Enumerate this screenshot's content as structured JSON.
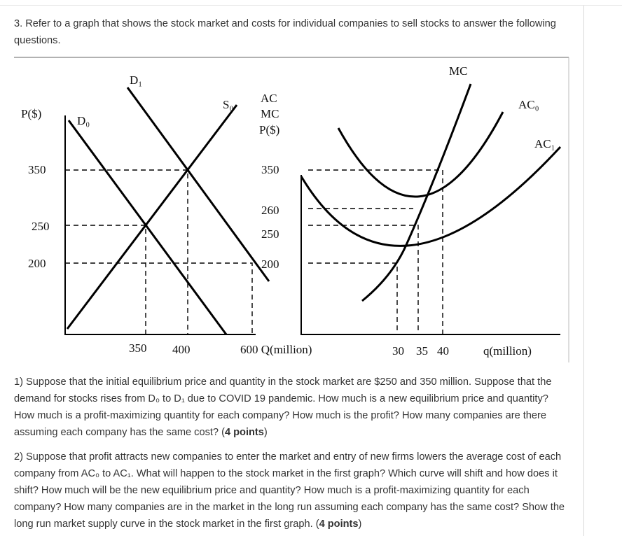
{
  "question": {
    "title": "3. Refer to a graph that shows the stock market and costs for individual companies to sell stocks to answer the following questions."
  },
  "figure": {
    "left": {
      "y_axis_label": "P($)",
      "y_labels": [
        "350",
        "250",
        "200"
      ],
      "x_labels": [
        "350",
        "400"
      ],
      "x_axis_label": "600 Q(million)",
      "curve_labels": [
        "D₁",
        "D₀",
        "S₀"
      ]
    },
    "right": {
      "y_axis_label": [
        "AC",
        "MC",
        "P($)"
      ],
      "y_labels": [
        "350",
        "260",
        "250",
        "200"
      ],
      "x_labels": [
        "30",
        "35",
        "40"
      ],
      "x_axis_label": "q(million)",
      "curve_labels": [
        "MC",
        "AC₀",
        "AC₁"
      ]
    }
  },
  "parts": [
    {
      "text": "1) Suppose that the initial equilibrium price and quantity in the stock market are $250 and 350 million. Suppose that the demand for stocks rises from D₀ to D₁ due to COVID 19 pandemic. How much is a new equilibrium price and quantity? How much is a profit-maximizing quantity for each company? How much is the profit? How many companies are there assuming each company has the same cost? (",
      "bold": "4 points",
      "after": ")"
    },
    {
      "text": "2) Suppose that profit attracts new companies to enter the market and entry of new firms lowers the average cost of each company from AC₀ to AC₁. What will happen to the stock market in the first graph? Which curve will shift and how does it shift? How much will be the new equilibrium price and quantity? How much is a profit-maximizing quantity for each company? How many companies are in the market in the long run assuming each company has the same cost? Show the long run market supply curve in the stock market in the first graph. (",
      "bold": "4 points",
      "after": ")"
    }
  ]
}
